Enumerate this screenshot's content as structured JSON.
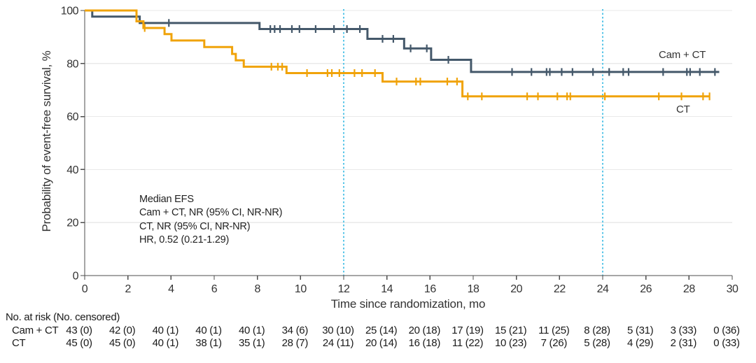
{
  "figure": {
    "legend": {
      "cam_ct": "Cam + CT",
      "ct": "CT"
    }
  },
  "chart_data": {
    "type": "line",
    "subtype": "kaplan-meier-step-curves",
    "title": "",
    "xlabel": "Time since randomization, mo",
    "ylabel": "Probability of event-free survival, %",
    "xlim": [
      0,
      30
    ],
    "ylim": [
      0,
      100
    ],
    "xticks": [
      0,
      2,
      4,
      6,
      8,
      10,
      12,
      14,
      16,
      18,
      20,
      22,
      24,
      26,
      28,
      30
    ],
    "yticks": [
      0,
      20,
      40,
      60,
      80,
      100
    ],
    "grid": "horizontal light gray lines at y = 20/40/60/80/100",
    "colors": {
      "text": "#333333",
      "axis": "#4d4d4d",
      "grid": "#e9e9e9"
    },
    "reference_lines_x": {
      "values": [
        12,
        24
      ],
      "color": "#5BC6E8",
      "style": "dotted"
    },
    "annotation": {
      "lines": [
        "Median EFS",
        "Cam + CT, NR (95% CI, NR-NR)",
        "CT, NR (95% CI, NR-NR)",
        "HR, 0.52 (0.21-1.29)"
      ]
    },
    "series": [
      {
        "name": "Cam + CT",
        "color": "#44586A",
        "x_end": 29.4,
        "steps": [
          [
            0,
            100
          ],
          [
            0.35,
            97.7
          ],
          [
            2.55,
            95.3
          ],
          [
            8.1,
            93.0
          ],
          [
            13.1,
            89.3
          ],
          [
            14.8,
            85.7
          ],
          [
            16.05,
            81.4
          ],
          [
            17.9,
            76.8
          ]
        ],
        "censors": [
          [
            3.9,
            95.3
          ],
          [
            8.6,
            93.0
          ],
          [
            8.8,
            93.0
          ],
          [
            9.05,
            93.0
          ],
          [
            9.6,
            93.0
          ],
          [
            9.95,
            93.0
          ],
          [
            10.7,
            93.0
          ],
          [
            11.55,
            93.0
          ],
          [
            12.15,
            93.0
          ],
          [
            12.75,
            93.0
          ],
          [
            13.8,
            89.3
          ],
          [
            14.3,
            89.3
          ],
          [
            15.1,
            85.7
          ],
          [
            15.85,
            85.7
          ],
          [
            16.85,
            81.4
          ],
          [
            19.8,
            76.8
          ],
          [
            20.7,
            76.8
          ],
          [
            21.4,
            76.8
          ],
          [
            21.55,
            76.8
          ],
          [
            22.1,
            76.8
          ],
          [
            22.6,
            76.8
          ],
          [
            23.55,
            76.8
          ],
          [
            24.3,
            76.8
          ],
          [
            24.95,
            76.8
          ],
          [
            25.2,
            76.8
          ],
          [
            26.8,
            76.8
          ],
          [
            27.9,
            76.8
          ],
          [
            28.05,
            76.8
          ],
          [
            28.5,
            76.8
          ],
          [
            29.2,
            76.8
          ]
        ]
      },
      {
        "name": "CT",
        "color": "#F0A30A",
        "x_end": 28.95,
        "steps": [
          [
            0,
            100
          ],
          [
            2.4,
            95.9
          ],
          [
            2.72,
            93.4
          ],
          [
            3.7,
            91.1
          ],
          [
            4.02,
            88.7
          ],
          [
            5.54,
            86.2
          ],
          [
            6.83,
            83.6
          ],
          [
            7.0,
            81.2
          ],
          [
            7.37,
            78.8
          ],
          [
            9.35,
            76.4
          ],
          [
            13.8,
            73.2
          ],
          [
            17.5,
            67.6
          ]
        ],
        "censors": [
          [
            2.78,
            93.4
          ],
          [
            8.65,
            78.8
          ],
          [
            8.95,
            78.8
          ],
          [
            9.15,
            78.8
          ],
          [
            10.3,
            76.4
          ],
          [
            11.25,
            76.4
          ],
          [
            11.45,
            76.4
          ],
          [
            11.8,
            76.4
          ],
          [
            12.5,
            76.4
          ],
          [
            12.85,
            76.4
          ],
          [
            13.45,
            76.4
          ],
          [
            14.45,
            73.2
          ],
          [
            15.35,
            73.2
          ],
          [
            15.55,
            73.2
          ],
          [
            16.8,
            73.2
          ],
          [
            17.25,
            73.2
          ],
          [
            17.75,
            67.6
          ],
          [
            18.4,
            67.6
          ],
          [
            20.5,
            67.6
          ],
          [
            21.0,
            67.6
          ],
          [
            21.9,
            67.6
          ],
          [
            22.35,
            67.6
          ],
          [
            22.5,
            67.6
          ],
          [
            24.1,
            67.6
          ],
          [
            26.6,
            67.6
          ],
          [
            27.65,
            67.6
          ],
          [
            28.65,
            67.6
          ],
          [
            28.95,
            67.6
          ]
        ]
      }
    ],
    "risk_table": {
      "title": "No. at risk (No. censored)",
      "months": [
        0,
        2,
        4,
        6,
        8,
        10,
        12,
        14,
        16,
        18,
        20,
        22,
        24,
        26,
        28,
        30
      ],
      "rows": [
        {
          "label": "Cam + CT",
          "values": [
            "43 (0)",
            "42 (0)",
            "40 (1)",
            "40 (1)",
            "40 (1)",
            "34 (6)",
            "30 (10)",
            "25 (14)",
            "20 (18)",
            "17 (19)",
            "15 (21)",
            "11 (25)",
            "8 (28)",
            "5 (31)",
            "3 (33)",
            "0 (36)"
          ]
        },
        {
          "label": "CT",
          "values": [
            "45 (0)",
            "45 (0)",
            "40 (1)",
            "38 (1)",
            "35 (1)",
            "28 (7)",
            "24 (11)",
            "20 (14)",
            "16 (18)",
            "11 (22)",
            "10 (23)",
            "7 (26)",
            "5 (28)",
            "4 (29)",
            "2 (31)",
            "0 (33)"
          ]
        }
      ]
    }
  }
}
